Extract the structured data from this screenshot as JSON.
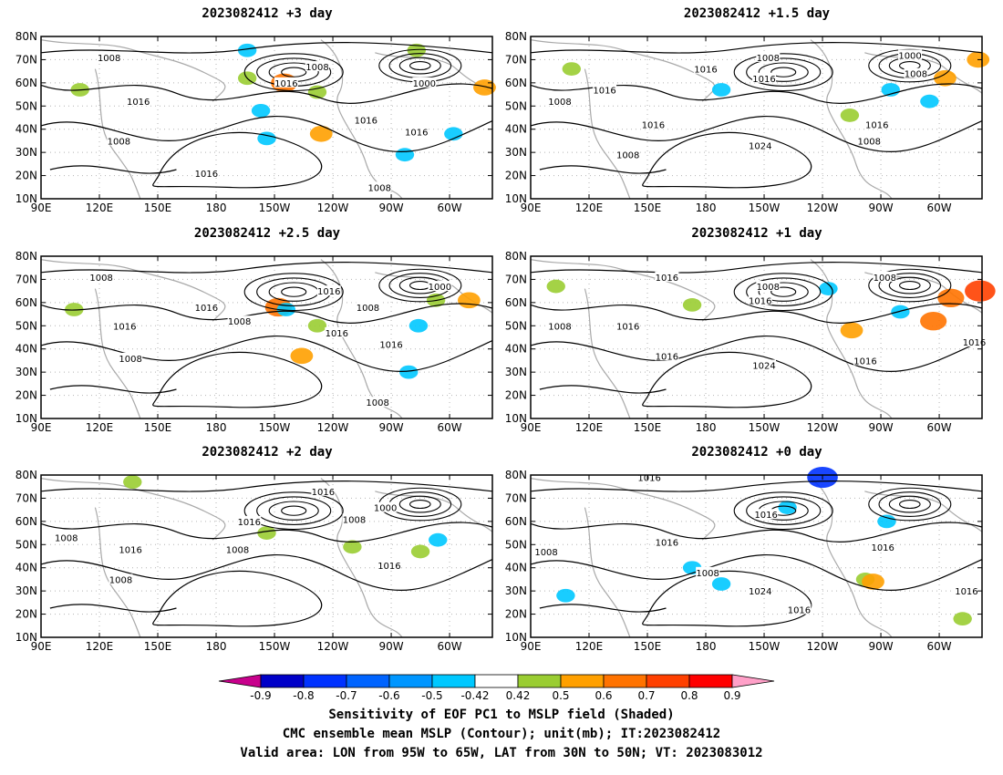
{
  "chart_data": [
    {
      "type": "contour-map",
      "title": "2023082412 +3 day",
      "xticks": [
        "90E",
        "120E",
        "150E",
        "180",
        "150W",
        "120W",
        "90W",
        "60W"
      ],
      "yticks": [
        "80N",
        "70N",
        "60N",
        "50N",
        "40N",
        "30N",
        "20N",
        "10N"
      ],
      "xlim_deg_east": [
        90,
        322
      ],
      "ylim_deg_north": [
        10,
        80
      ],
      "contour_labels": [
        {
          "text": "1008",
          "lon": 125,
          "lat": 71
        },
        {
          "text": "1016",
          "lon": 140,
          "lat": 52
        },
        {
          "text": "1008",
          "lon": 130,
          "lat": 35
        },
        {
          "text": "1016",
          "lon": 175,
          "lat": 21
        },
        {
          "text": "1016",
          "lon": 216,
          "lat": 60
        },
        {
          "text": "1008",
          "lon": 232,
          "lat": 67
        },
        {
          "text": "1016",
          "lon": 257,
          "lat": 44
        },
        {
          "text": "1016",
          "lon": 283,
          "lat": 39
        },
        {
          "text": "1000",
          "lon": 287,
          "lat": 60
        },
        {
          "text": "1008",
          "lon": 264,
          "lat": 15
        }
      ],
      "sensitivity_areas": [
        {
          "sign": "positive",
          "level": 0.7,
          "lon": 215,
          "lat": 60
        },
        {
          "sign": "positive",
          "level": 0.5,
          "lon": 196,
          "lat": 62
        },
        {
          "sign": "positive",
          "level": 0.5,
          "lon": 232,
          "lat": 56
        },
        {
          "sign": "positive",
          "level": 0.6,
          "lon": 234,
          "lat": 38
        },
        {
          "sign": "positive",
          "level": 0.5,
          "lon": 110,
          "lat": 57
        },
        {
          "sign": "positive",
          "level": 0.5,
          "lon": 283,
          "lat": 74
        },
        {
          "sign": "positive",
          "level": 0.6,
          "lon": 318,
          "lat": 58
        },
        {
          "sign": "negative",
          "level": -0.5,
          "lon": 203,
          "lat": 48
        },
        {
          "sign": "negative",
          "level": -0.5,
          "lon": 206,
          "lat": 36
        },
        {
          "sign": "negative",
          "level": -0.5,
          "lon": 277,
          "lat": 29
        },
        {
          "sign": "negative",
          "level": -0.5,
          "lon": 302,
          "lat": 38
        },
        {
          "sign": "negative",
          "level": -0.5,
          "lon": 196,
          "lat": 74
        }
      ]
    },
    {
      "type": "contour-map",
      "title": "2023082412 +1.5 day",
      "xticks": [
        "90E",
        "120E",
        "150E",
        "180",
        "150W",
        "120W",
        "90W",
        "60W"
      ],
      "yticks": [
        "80N",
        "70N",
        "60N",
        "50N",
        "40N",
        "30N",
        "20N",
        "10N"
      ],
      "xlim_deg_east": [
        90,
        322
      ],
      "ylim_deg_north": [
        10,
        80
      ],
      "contour_labels": [
        {
          "text": "1016",
          "lon": 180,
          "lat": 66
        },
        {
          "text": "1008",
          "lon": 212,
          "lat": 71
        },
        {
          "text": "1016",
          "lon": 210,
          "lat": 62
        },
        {
          "text": "1016",
          "lon": 128,
          "lat": 57
        },
        {
          "text": "1008",
          "lon": 105,
          "lat": 52
        },
        {
          "text": "1016",
          "lon": 153,
          "lat": 42
        },
        {
          "text": "1008",
          "lon": 140,
          "lat": 29
        },
        {
          "text": "1024",
          "lon": 208,
          "lat": 33
        },
        {
          "text": "1016",
          "lon": 268,
          "lat": 42
        },
        {
          "text": "1008",
          "lon": 264,
          "lat": 35
        },
        {
          "text": "1000",
          "lon": 285,
          "lat": 72
        },
        {
          "text": "1008",
          "lon": 288,
          "lat": 64
        }
      ],
      "sensitivity_areas": [
        {
          "sign": "positive",
          "level": 0.6,
          "lon": 303,
          "lat": 62
        },
        {
          "sign": "positive",
          "level": 0.5,
          "lon": 111,
          "lat": 66
        },
        {
          "sign": "positive",
          "level": 0.6,
          "lon": 320,
          "lat": 70
        },
        {
          "sign": "positive",
          "level": 0.5,
          "lon": 254,
          "lat": 46
        },
        {
          "sign": "negative",
          "level": -0.5,
          "lon": 188,
          "lat": 57
        },
        {
          "sign": "negative",
          "level": -0.5,
          "lon": 295,
          "lat": 52
        },
        {
          "sign": "negative",
          "level": -0.5,
          "lon": 275,
          "lat": 57
        }
      ]
    },
    {
      "type": "contour-map",
      "title": "2023082412 +2.5 day",
      "xticks": [
        "90E",
        "120E",
        "150E",
        "180",
        "150W",
        "120W",
        "90W",
        "60W"
      ],
      "yticks": [
        "80N",
        "70N",
        "60N",
        "50N",
        "40N",
        "30N",
        "20N",
        "10N"
      ],
      "xlim_deg_east": [
        90,
        322
      ],
      "ylim_deg_north": [
        10,
        80
      ],
      "contour_labels": [
        {
          "text": "1008",
          "lon": 121,
          "lat": 71
        },
        {
          "text": "1016",
          "lon": 133,
          "lat": 50
        },
        {
          "text": "1008",
          "lon": 136,
          "lat": 36
        },
        {
          "text": "1016",
          "lon": 175,
          "lat": 58
        },
        {
          "text": "1008",
          "lon": 192,
          "lat": 52
        },
        {
          "text": "1016",
          "lon": 238,
          "lat": 65
        },
        {
          "text": "1008",
          "lon": 258,
          "lat": 58
        },
        {
          "text": "1016",
          "lon": 242,
          "lat": 47
        },
        {
          "text": "1016",
          "lon": 270,
          "lat": 42
        },
        {
          "text": "1000",
          "lon": 295,
          "lat": 67
        },
        {
          "text": "1008",
          "lon": 263,
          "lat": 17
        }
      ],
      "sensitivity_areas": [
        {
          "sign": "positive",
          "level": 0.7,
          "lon": 212,
          "lat": 58
        },
        {
          "sign": "positive",
          "level": 0.5,
          "lon": 232,
          "lat": 50
        },
        {
          "sign": "positive",
          "level": 0.6,
          "lon": 224,
          "lat": 37
        },
        {
          "sign": "positive",
          "level": 0.6,
          "lon": 310,
          "lat": 61
        },
        {
          "sign": "positive",
          "level": 0.5,
          "lon": 107,
          "lat": 57
        },
        {
          "sign": "positive",
          "level": 0.5,
          "lon": 293,
          "lat": 61
        },
        {
          "sign": "negative",
          "level": -0.5,
          "lon": 279,
          "lat": 30
        },
        {
          "sign": "negative",
          "level": -0.5,
          "lon": 284,
          "lat": 50
        },
        {
          "sign": "negative",
          "level": -0.5,
          "lon": 216,
          "lat": 57
        }
      ]
    },
    {
      "type": "contour-map",
      "title": "2023082412 +1 day",
      "xticks": [
        "90E",
        "120E",
        "150E",
        "180",
        "150W",
        "120W",
        "90W",
        "60W"
      ],
      "yticks": [
        "80N",
        "70N",
        "60N",
        "50N",
        "40N",
        "30N",
        "20N",
        "10N"
      ],
      "xlim_deg_east": [
        90,
        322
      ],
      "ylim_deg_north": [
        10,
        80
      ],
      "contour_labels": [
        {
          "text": "1016",
          "lon": 160,
          "lat": 71
        },
        {
          "text": "1008",
          "lon": 212,
          "lat": 67
        },
        {
          "text": "1016",
          "lon": 208,
          "lat": 61
        },
        {
          "text": "1008",
          "lon": 105,
          "lat": 50
        },
        {
          "text": "1016",
          "lon": 140,
          "lat": 50
        },
        {
          "text": "1016",
          "lon": 160,
          "lat": 37
        },
        {
          "text": "1024",
          "lon": 210,
          "lat": 33
        },
        {
          "text": "1016",
          "lon": 262,
          "lat": 35
        },
        {
          "text": "1008",
          "lon": 272,
          "lat": 71
        },
        {
          "text": "1016",
          "lon": 318,
          "lat": 43
        }
      ],
      "sensitivity_areas": [
        {
          "sign": "positive",
          "level": 0.7,
          "lon": 306,
          "lat": 62
        },
        {
          "sign": "positive",
          "level": 0.8,
          "lon": 321,
          "lat": 65
        },
        {
          "sign": "positive",
          "level": 0.7,
          "lon": 297,
          "lat": 52
        },
        {
          "sign": "positive",
          "level": 0.6,
          "lon": 255,
          "lat": 48
        },
        {
          "sign": "positive",
          "level": 0.5,
          "lon": 173,
          "lat": 59
        },
        {
          "sign": "positive",
          "level": 0.5,
          "lon": 103,
          "lat": 67
        },
        {
          "sign": "negative",
          "level": -0.5,
          "lon": 243,
          "lat": 66
        },
        {
          "sign": "negative",
          "level": -0.5,
          "lon": 280,
          "lat": 56
        }
      ]
    },
    {
      "type": "contour-map",
      "title": "2023082412 +2 day",
      "xticks": [
        "90E",
        "120E",
        "150E",
        "180",
        "150W",
        "120W",
        "90W",
        "60W"
      ],
      "yticks": [
        "80N",
        "70N",
        "60N",
        "50N",
        "40N",
        "30N",
        "20N",
        "10N"
      ],
      "xlim_deg_east": [
        90,
        322
      ],
      "ylim_deg_north": [
        10,
        80
      ],
      "contour_labels": [
        {
          "text": "1008",
          "lon": 103,
          "lat": 53
        },
        {
          "text": "1016",
          "lon": 136,
          "lat": 48
        },
        {
          "text": "1008",
          "lon": 131,
          "lat": 35
        },
        {
          "text": "1016",
          "lon": 197,
          "lat": 60
        },
        {
          "text": "1008",
          "lon": 191,
          "lat": 48
        },
        {
          "text": "1016",
          "lon": 235,
          "lat": 73
        },
        {
          "text": "1008",
          "lon": 251,
          "lat": 61
        },
        {
          "text": "1000",
          "lon": 267,
          "lat": 66
        },
        {
          "text": "1016",
          "lon": 269,
          "lat": 41
        }
      ],
      "sensitivity_areas": [
        {
          "sign": "positive",
          "level": 0.5,
          "lon": 250,
          "lat": 49
        },
        {
          "sign": "positive",
          "level": 0.5,
          "lon": 285,
          "lat": 47
        },
        {
          "sign": "positive",
          "level": 0.5,
          "lon": 206,
          "lat": 55
        },
        {
          "sign": "positive",
          "level": 0.5,
          "lon": 137,
          "lat": 77
        },
        {
          "sign": "negative",
          "level": -0.5,
          "lon": 294,
          "lat": 52
        }
      ]
    },
    {
      "type": "contour-map",
      "title": "2023082412 +0 day",
      "xticks": [
        "90E",
        "120E",
        "150E",
        "180",
        "150W",
        "120W",
        "90W",
        "60W"
      ],
      "yticks": [
        "80N",
        "70N",
        "60N",
        "50N",
        "40N",
        "30N",
        "20N",
        "10N"
      ],
      "xlim_deg_east": [
        90,
        322
      ],
      "ylim_deg_north": [
        10,
        80
      ],
      "contour_labels": [
        {
          "text": "1016",
          "lon": 151,
          "lat": 79
        },
        {
          "text": "1016",
          "lon": 211,
          "lat": 63
        },
        {
          "text": "1016",
          "lon": 160,
          "lat": 51
        },
        {
          "text": "1008",
          "lon": 98,
          "lat": 47
        },
        {
          "text": "1008",
          "lon": 181,
          "lat": 38
        },
        {
          "text": "1024",
          "lon": 208,
          "lat": 30
        },
        {
          "text": "1016",
          "lon": 228,
          "lat": 22
        },
        {
          "text": "1016",
          "lon": 271,
          "lat": 49
        },
        {
          "text": "1016",
          "lon": 314,
          "lat": 30
        }
      ],
      "sensitivity_areas": [
        {
          "sign": "negative",
          "level": -0.8,
          "lon": 240,
          "lat": 79
        },
        {
          "sign": "negative",
          "level": -0.5,
          "lon": 173,
          "lat": 40
        },
        {
          "sign": "negative",
          "level": -0.5,
          "lon": 188,
          "lat": 33
        },
        {
          "sign": "negative",
          "level": -0.5,
          "lon": 222,
          "lat": 66
        },
        {
          "sign": "negative",
          "level": -0.5,
          "lon": 108,
          "lat": 28
        },
        {
          "sign": "negative",
          "level": -0.5,
          "lon": 273,
          "lat": 60
        },
        {
          "sign": "positive",
          "level": 0.5,
          "lon": 262,
          "lat": 35
        },
        {
          "sign": "positive",
          "level": 0.6,
          "lon": 266,
          "lat": 34
        },
        {
          "sign": "positive",
          "level": 0.5,
          "lon": 312,
          "lat": 18
        }
      ]
    }
  ],
  "colorbar": {
    "ticks": [
      "-0.9",
      "-0.8",
      "-0.7",
      "-0.6",
      "-0.5",
      "-0.42",
      "0.42",
      "0.5",
      "0.6",
      "0.7",
      "0.8",
      "0.9"
    ],
    "colors": [
      "#0000c8",
      "#0032ff",
      "#0064ff",
      "#0096ff",
      "#00c8ff",
      "#ffffff",
      "#9acd32",
      "#ffa000",
      "#ff7300",
      "#ff4000",
      "#ff0000"
    ],
    "under_color": "#c8008c",
    "over_color": "#ffa0c8"
  },
  "caption": {
    "line1": "Sensitivity of EOF PC1 to MSLP field (Shaded)",
    "line2": "CMC ensemble mean MSLP (Contour); unit(mb); IT:2023082412",
    "line3": "Valid area: LON from 95W to 65W, LAT from 30N to 50N; VT: 2023083012"
  },
  "colors": {
    "contour": "#000000",
    "coastline": "#a9a9a9",
    "grid": "#b4b4b4"
  }
}
